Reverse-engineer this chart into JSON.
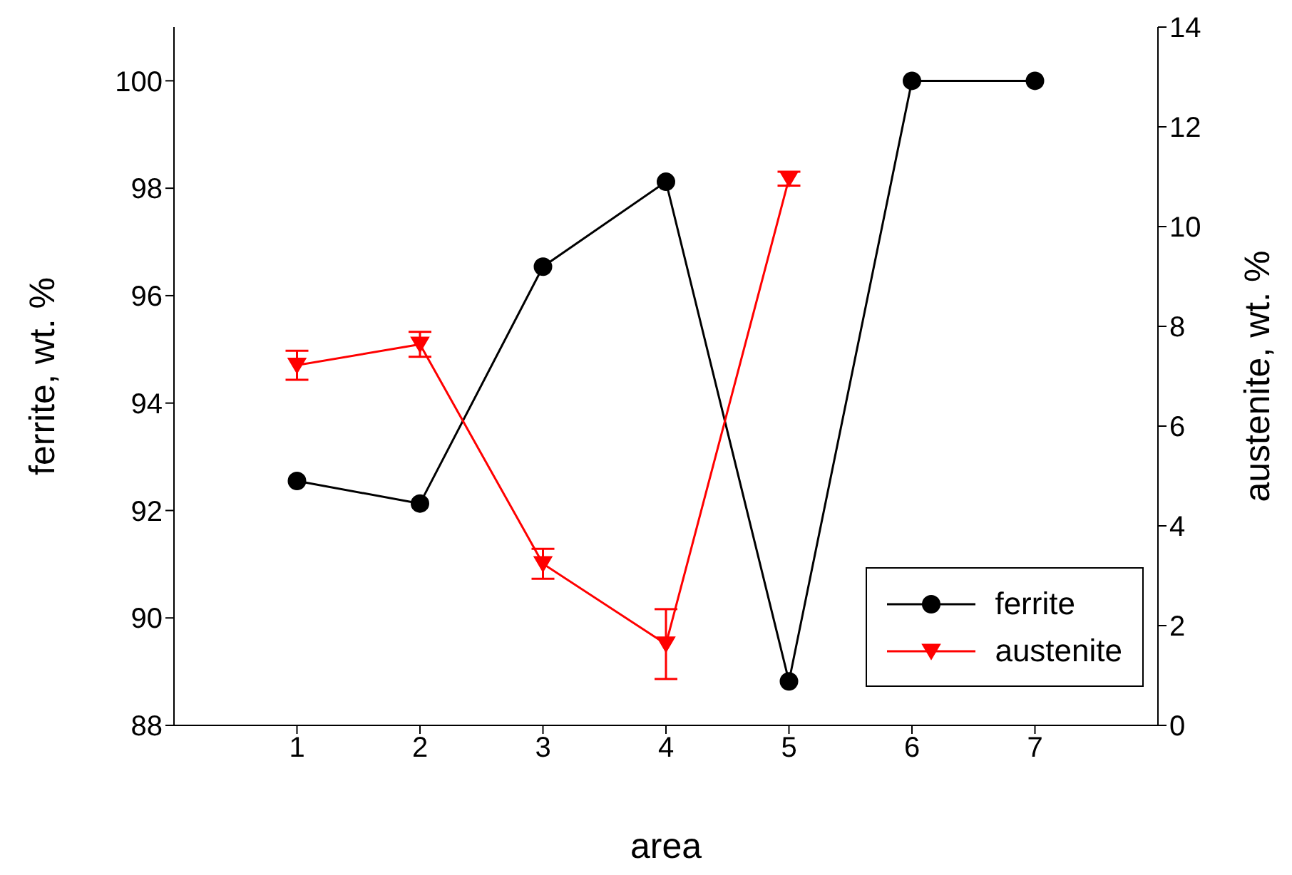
{
  "chart_data": {
    "type": "line",
    "xlabel": "area",
    "ylabel": "ferrite, wt. %",
    "y2label": "austenite, wt. %",
    "x": [
      1,
      2,
      3,
      4,
      5,
      6,
      7
    ],
    "series": [
      {
        "name": "ferrite",
        "color": "#000000",
        "marker": "circle",
        "values": [
          92.55,
          92.13,
          96.54,
          98.12,
          88.82,
          100,
          100
        ]
      },
      {
        "name": "austenite",
        "color": "#ff0000",
        "marker": "triangle",
        "axis": "y2",
        "x": [
          1,
          2,
          3,
          4,
          5
        ],
        "values": [
          7.22,
          7.64,
          3.24,
          1.63,
          10.96
        ],
        "errors": [
          0.29,
          0.25,
          0.3,
          0.7,
          0.14
        ]
      }
    ],
    "xlim": [
      0,
      8
    ],
    "xticks": [
      1,
      2,
      3,
      4,
      5,
      6,
      7
    ],
    "ylim": [
      88,
      101
    ],
    "yticks": [
      88,
      90,
      92,
      94,
      96,
      98,
      100
    ],
    "y2lim": [
      0,
      14
    ],
    "y2ticks": [
      0,
      2,
      4,
      6,
      8,
      10,
      12,
      14
    ],
    "grid": false,
    "legend": "bottom right"
  }
}
